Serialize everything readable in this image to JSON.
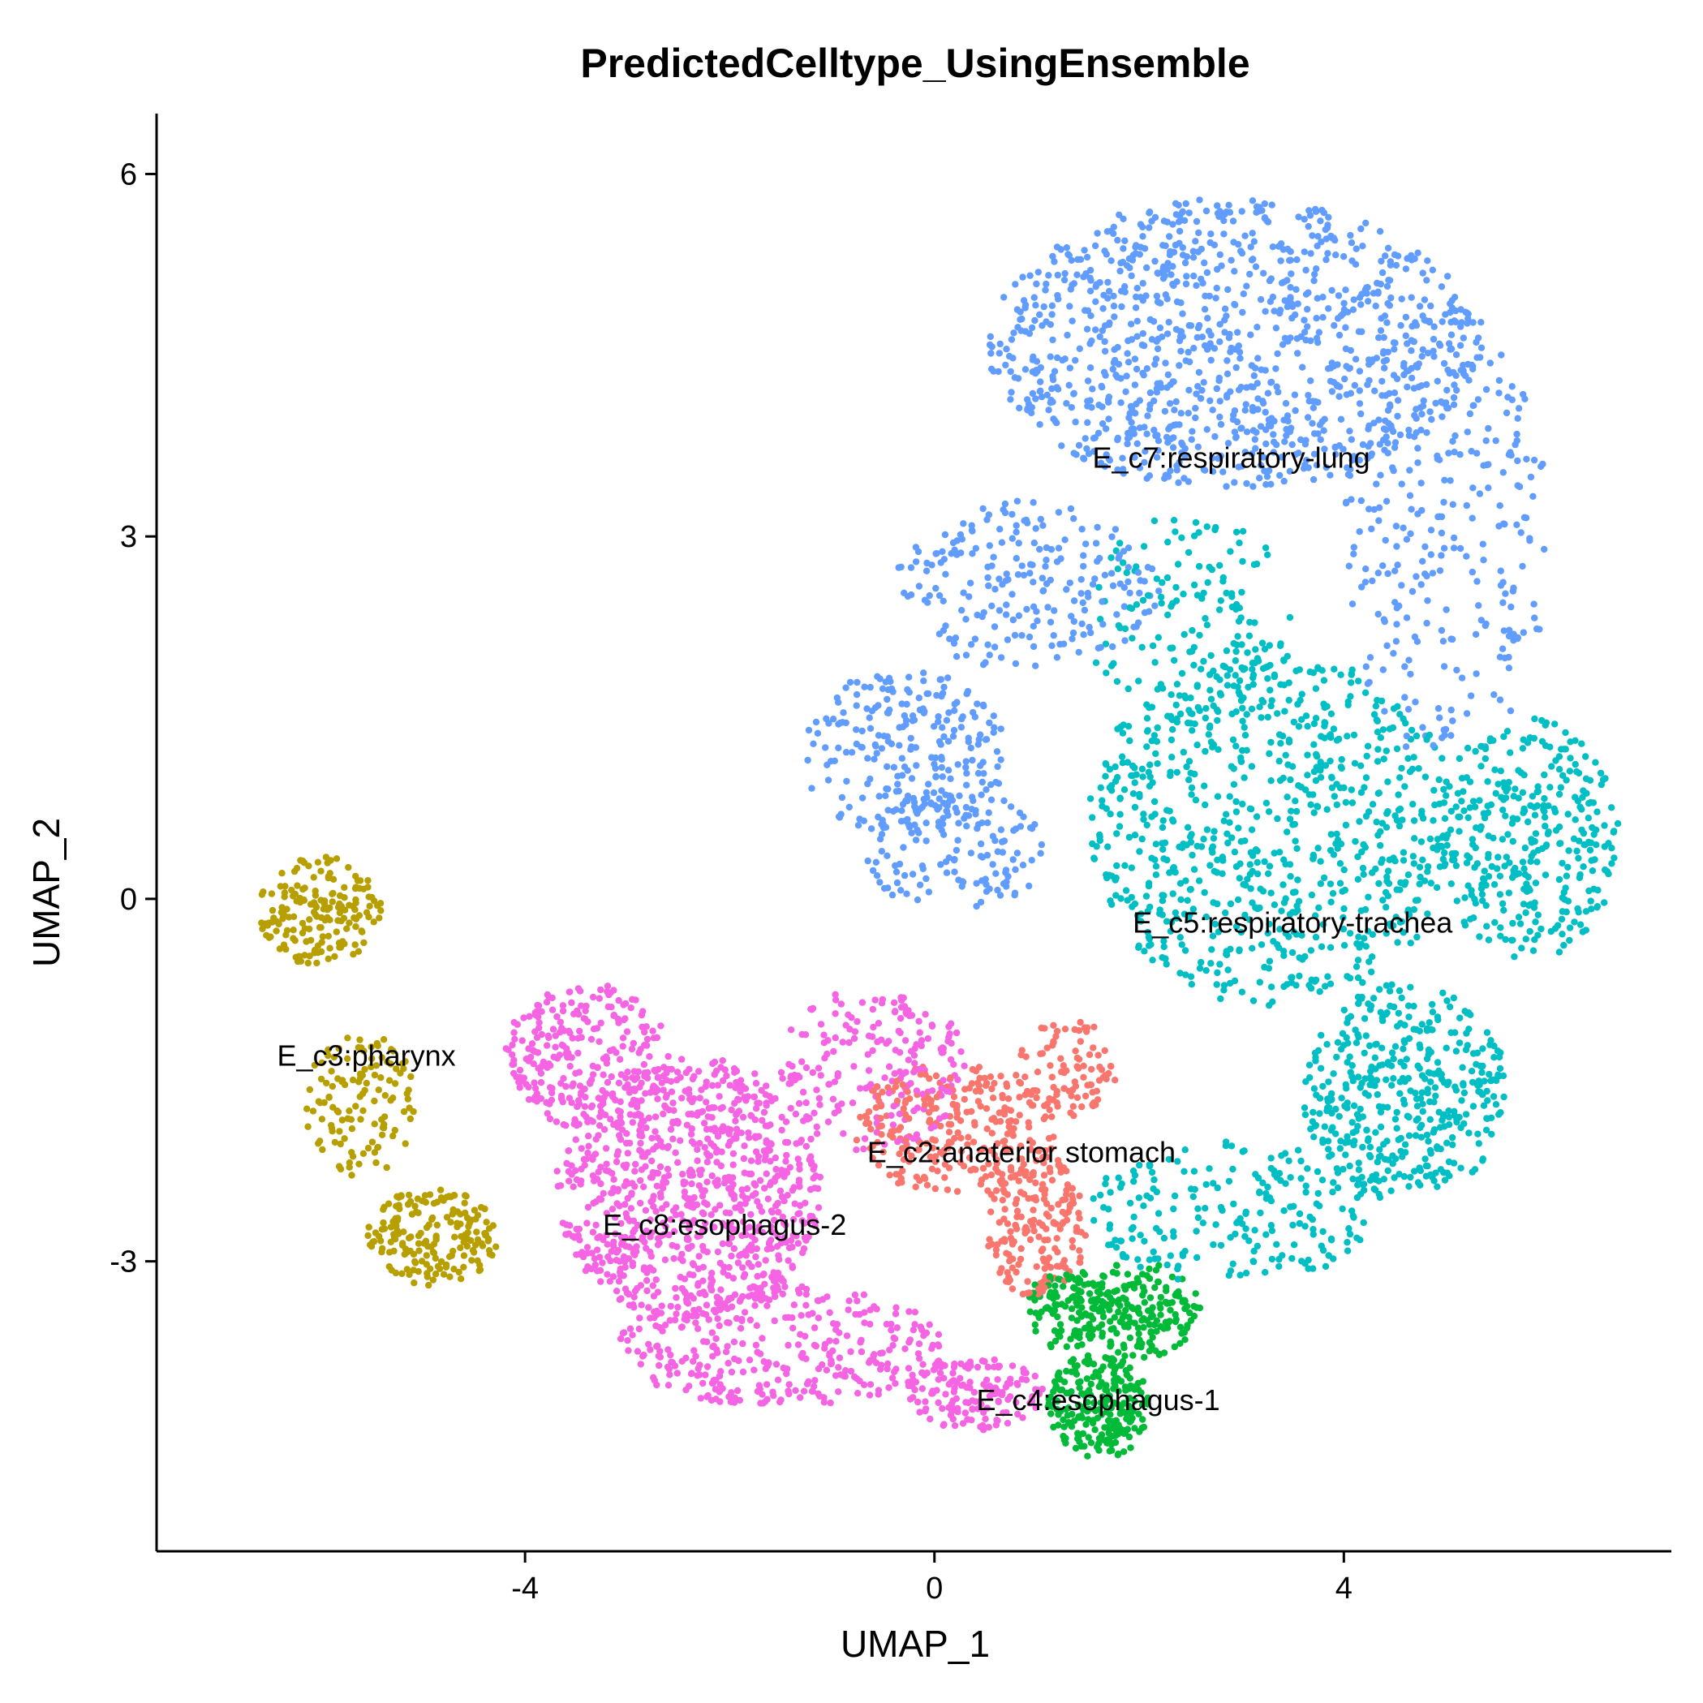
{
  "chart_data": {
    "type": "scatter",
    "title": "PredictedCelltype_UsingEnsemble",
    "xlabel": "UMAP_1",
    "ylabel": "UMAP_2",
    "xlim": [
      -7.6,
      7.2
    ],
    "ylim": [
      -5.4,
      6.5
    ],
    "xticks": [
      -4,
      0,
      4
    ],
    "yticks": [
      -3,
      0,
      3,
      6
    ],
    "xtick_labels": [
      "-4",
      "0",
      "4"
    ],
    "ytick_labels": [
      "-3",
      "0",
      "3",
      "6"
    ],
    "grid": false,
    "legend": "none",
    "clusters": [
      {
        "name": "E_c7:respiratory-lung",
        "color": "#619CFF",
        "label_pos": [
          2.9,
          3.65
        ],
        "n_points": 1900,
        "blobs": [
          {
            "cx": 2.9,
            "cy": 4.6,
            "rx": 2.4,
            "ry": 1.2,
            "weight": 0.55
          },
          {
            "cx": 5.0,
            "cy": 3.0,
            "rx": 1.0,
            "ry": 1.9,
            "weight": 0.15
          },
          {
            "cx": 0.9,
            "cy": 2.6,
            "rx": 1.3,
            "ry": 0.7,
            "weight": 0.12
          },
          {
            "cx": -0.3,
            "cy": 1.2,
            "rx": 1.0,
            "ry": 0.7,
            "weight": 0.12
          },
          {
            "cx": 0.2,
            "cy": 0.4,
            "rx": 0.9,
            "ry": 0.5,
            "weight": 0.06
          }
        ]
      },
      {
        "name": "E_c5:respiratory-trachea",
        "color": "#00BFC4",
        "label_pos": [
          3.5,
          -0.2
        ],
        "n_points": 1900,
        "blobs": [
          {
            "cx": 3.3,
            "cy": 0.6,
            "rx": 1.8,
            "ry": 1.5,
            "weight": 0.4
          },
          {
            "cx": 5.8,
            "cy": 0.5,
            "rx": 0.9,
            "ry": 1.0,
            "weight": 0.18
          },
          {
            "cx": 4.6,
            "cy": -1.6,
            "rx": 1.0,
            "ry": 0.9,
            "weight": 0.22
          },
          {
            "cx": 2.9,
            "cy": -2.6,
            "rx": 1.4,
            "ry": 0.6,
            "weight": 0.12
          },
          {
            "cx": 2.5,
            "cy": 2.3,
            "rx": 1.0,
            "ry": 0.9,
            "weight": 0.08
          }
        ]
      },
      {
        "name": "E_c3:pharynx",
        "color": "#B79F00",
        "label_pos": [
          -5.55,
          -1.3
        ],
        "n_points": 480,
        "blobs": [
          {
            "cx": -6.0,
            "cy": -0.1,
            "rx": 0.6,
            "ry": 0.45,
            "weight": 0.4
          },
          {
            "cx": -5.6,
            "cy": -1.7,
            "rx": 0.55,
            "ry": 0.6,
            "weight": 0.25
          },
          {
            "cx": -4.9,
            "cy": -2.8,
            "rx": 0.65,
            "ry": 0.4,
            "weight": 0.35
          }
        ]
      },
      {
        "name": "E_c8:esophagus-2",
        "color": "#F564E3",
        "label_pos": [
          -2.05,
          -2.7
        ],
        "n_points": 1800,
        "blobs": [
          {
            "cx": -2.4,
            "cy": -2.4,
            "rx": 1.3,
            "ry": 1.1,
            "weight": 0.45
          },
          {
            "cx": -1.5,
            "cy": -3.7,
            "rx": 1.6,
            "ry": 0.5,
            "weight": 0.2
          },
          {
            "cx": -3.4,
            "cy": -1.3,
            "rx": 0.8,
            "ry": 0.6,
            "weight": 0.15
          },
          {
            "cx": -0.6,
            "cy": -1.4,
            "rx": 0.9,
            "ry": 0.7,
            "weight": 0.12
          },
          {
            "cx": 0.4,
            "cy": -4.1,
            "rx": 0.7,
            "ry": 0.3,
            "weight": 0.08
          }
        ]
      },
      {
        "name": "E_c2:anaterior stomach",
        "color": "#F8766D",
        "label_pos": [
          0.85,
          -2.1
        ],
        "n_points": 550,
        "blobs": [
          {
            "cx": 0.2,
            "cy": -1.9,
            "rx": 1.0,
            "ry": 0.55,
            "weight": 0.5
          },
          {
            "cx": 1.0,
            "cy": -2.7,
            "rx": 0.5,
            "ry": 0.6,
            "weight": 0.35
          },
          {
            "cx": 1.3,
            "cy": -1.4,
            "rx": 0.5,
            "ry": 0.4,
            "weight": 0.15
          }
        ]
      },
      {
        "name": "E_c4:esophagus-1",
        "color": "#00BA38",
        "label_pos": [
          1.6,
          -4.15
        ],
        "n_points": 520,
        "blobs": [
          {
            "cx": 1.6,
            "cy": -4.2,
            "rx": 0.5,
            "ry": 0.45,
            "weight": 0.45
          },
          {
            "cx": 2.0,
            "cy": -3.4,
            "rx": 0.6,
            "ry": 0.4,
            "weight": 0.35
          },
          {
            "cx": 1.3,
            "cy": -3.4,
            "rx": 0.4,
            "ry": 0.35,
            "weight": 0.2
          }
        ]
      }
    ]
  }
}
